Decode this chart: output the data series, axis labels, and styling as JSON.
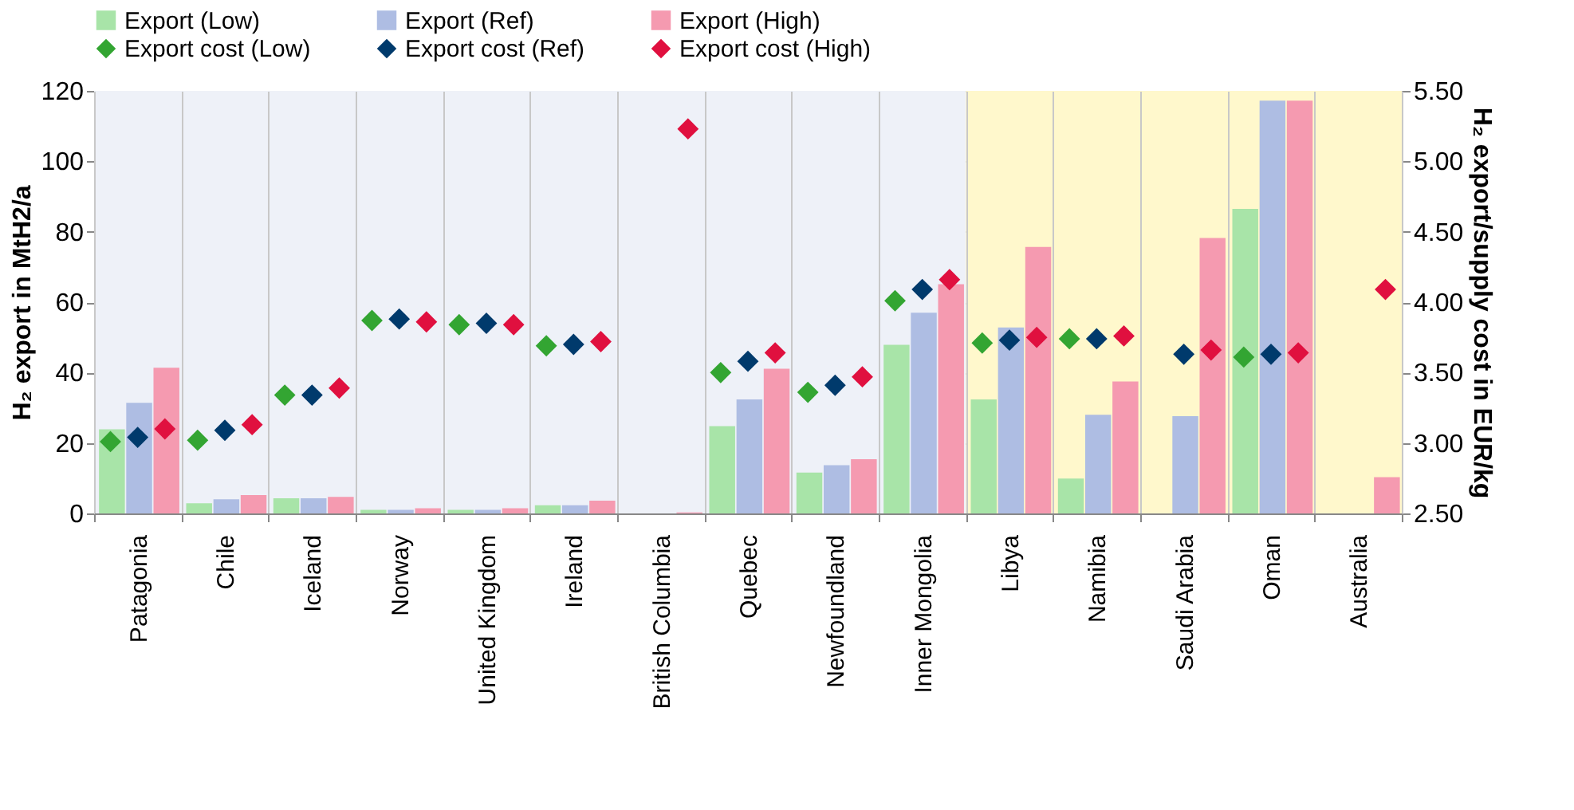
{
  "chart_data": {
    "type": "bar",
    "ylabel": "H₂ export in MtH2/a",
    "y2label": "H₂ export/supply cost in EUR/kg",
    "categories": [
      "Patagonia",
      "Chile",
      "Iceland",
      "Norway",
      "United Kingdom",
      "Ireland",
      "British Columbia",
      "Quebec",
      "Newfoundland",
      "Inner Mongolia",
      "Libya",
      "Namibia",
      "Saudi Arabia",
      "Oman",
      "Australia"
    ],
    "series": [
      {
        "name": "Export (Low)",
        "color": "#a8e4a8",
        "values": [
          23.9,
          2.9,
          4.3,
          1.0,
          1.0,
          2.3,
          null,
          24.8,
          11.6,
          47.9,
          32.4,
          9.9,
          null,
          86.5,
          null
        ]
      },
      {
        "name": "Export (Ref)",
        "color": "#aebde3",
        "values": [
          31.4,
          4.0,
          4.3,
          1.0,
          1.0,
          2.3,
          null,
          32.4,
          13.7,
          57.0,
          52.8,
          28.0,
          27.6,
          117.2,
          null
        ]
      },
      {
        "name": "Export (High)",
        "color": "#f59ab0",
        "values": [
          41.4,
          5.2,
          4.7,
          1.5,
          1.5,
          3.6,
          0.3,
          41.1,
          15.4,
          65.1,
          75.7,
          37.5,
          78.2,
          117.2,
          10.3
        ]
      },
      {
        "name": "Export cost (Low)",
        "type": "scatter",
        "axis": "y2",
        "marker": "diamond",
        "color": "#33a532",
        "values": [
          3.01,
          3.02,
          3.34,
          3.87,
          3.84,
          3.69,
          null,
          3.5,
          3.36,
          4.01,
          3.71,
          3.74,
          null,
          3.61,
          null
        ]
      },
      {
        "name": "Export cost (Ref)",
        "type": "scatter",
        "axis": "y2",
        "marker": "diamond",
        "color": "#003a6c",
        "values": [
          3.04,
          3.09,
          3.34,
          3.88,
          3.85,
          3.7,
          null,
          3.58,
          3.41,
          4.09,
          3.73,
          3.74,
          3.63,
          3.63,
          null
        ]
      },
      {
        "name": "Export cost (High)",
        "type": "scatter",
        "axis": "y2",
        "marker": "diamond",
        "color": "#e0103f",
        "values": [
          3.1,
          3.13,
          3.39,
          3.86,
          3.84,
          3.72,
          5.23,
          3.64,
          3.47,
          4.16,
          3.75,
          3.76,
          3.66,
          3.64,
          4.09
        ]
      }
    ],
    "ylim": [
      0,
      120
    ],
    "yticks": [
      0,
      20,
      40,
      60,
      80,
      100,
      120
    ],
    "y2lim": [
      2.5,
      5.5
    ],
    "y2ticks": [
      {
        "value": 2.5,
        "label": "2.50"
      },
      {
        "value": 3,
        "label": "3.00"
      },
      {
        "value": 3.5,
        "label": "3.50"
      },
      {
        "value": 4,
        "label": "4.00"
      },
      {
        "value": 4.5,
        "label": "4.50"
      },
      {
        "value": 5,
        "label": "5.00"
      },
      {
        "value": 5.5,
        "label": "5.50"
      }
    ],
    "bands": [
      {
        "axis": "x",
        "from": "Patagonia",
        "to": "Inner Mongolia",
        "color": "#eef1f8"
      },
      {
        "axis": "x",
        "from": "Libya",
        "to": "Australia",
        "color": "#fff8cc"
      }
    ],
    "grid": true,
    "legend": "top"
  }
}
